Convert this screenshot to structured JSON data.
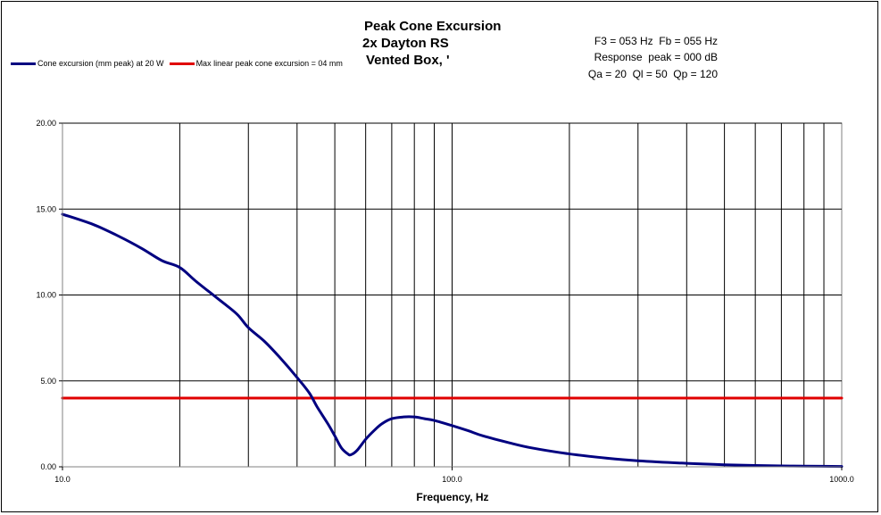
{
  "chart_data": {
    "type": "line",
    "title_lines": [
      "Peak Cone Excursion",
      "2x Dayton RS",
      "Vented Box, '"
    ],
    "info_lines": [
      "F3 = 053 Hz  Fb = 055 Hz",
      "Response  peak = 000 dB",
      "Qa = 20  Ql = 50  Qp = 120"
    ],
    "xlabel": "Frequency, Hz",
    "ylabel": "",
    "x_scale": "log",
    "xlim": [
      10,
      1000
    ],
    "ylim": [
      0,
      20
    ],
    "x_tick_labels": [
      "10.0",
      "100.0",
      "1000.0"
    ],
    "y_tick_labels": [
      "0.00",
      "5.00",
      "10.00",
      "15.00",
      "20.00"
    ],
    "grid": true,
    "legend_position": "top-left",
    "series": [
      {
        "name": "Cone excursion (mm peak) at 20 W",
        "color": "#000080",
        "x": [
          10,
          12,
          14,
          16,
          18,
          20,
          22,
          25,
          28,
          30,
          33,
          36,
          40,
          43,
          45,
          48,
          50,
          52,
          54,
          55,
          57,
          60,
          63,
          66,
          70,
          75,
          80,
          85,
          90,
          100,
          110,
          120,
          140,
          160,
          200,
          250,
          300,
          400,
          500,
          600,
          700,
          800,
          1000
        ],
        "y": [
          14.7,
          14.1,
          13.4,
          12.7,
          12.0,
          11.6,
          10.8,
          9.8,
          8.9,
          8.1,
          7.3,
          6.4,
          5.2,
          4.3,
          3.5,
          2.5,
          1.8,
          1.1,
          0.75,
          0.7,
          0.95,
          1.6,
          2.1,
          2.5,
          2.8,
          2.9,
          2.9,
          2.8,
          2.7,
          2.4,
          2.1,
          1.8,
          1.4,
          1.1,
          0.75,
          0.5,
          0.35,
          0.2,
          0.12,
          0.08,
          0.05,
          0.04,
          0.02
        ]
      },
      {
        "name": "Max linear peak cone excursion = 04 mm",
        "color": "#e00000",
        "x": [
          10,
          1000
        ],
        "y": [
          4,
          4
        ]
      }
    ]
  }
}
